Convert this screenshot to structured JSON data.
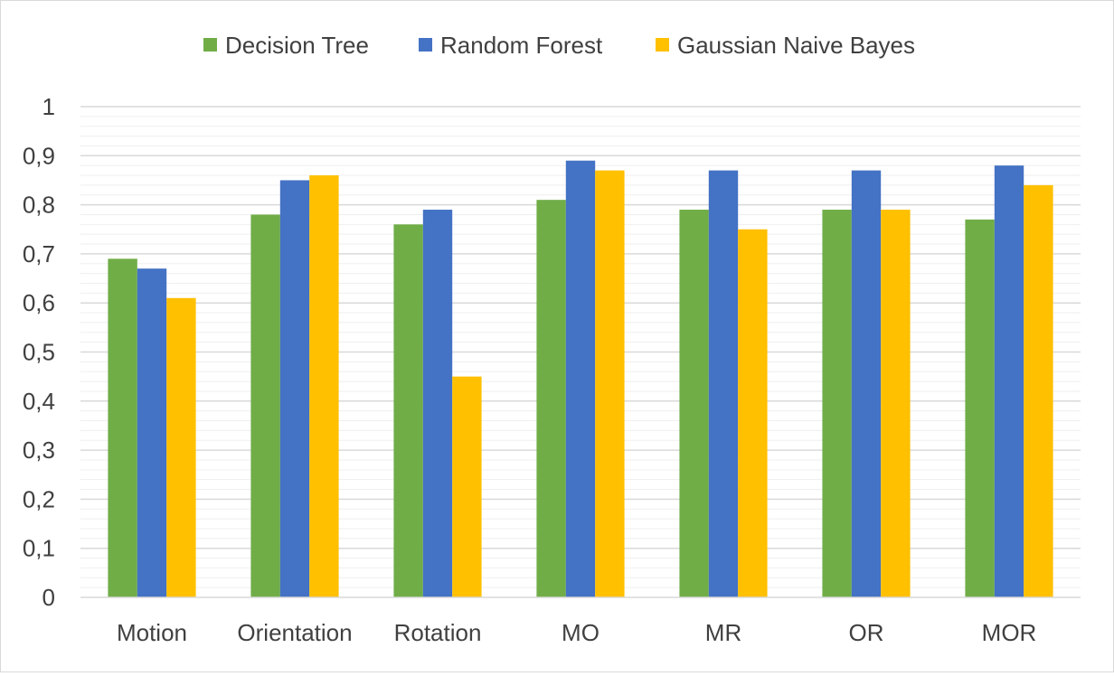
{
  "chart_data": {
    "type": "bar",
    "title": "",
    "xlabel": "",
    "ylabel": "",
    "categories": [
      "Motion",
      "Orientation",
      "Rotation",
      "MO",
      "MR",
      "OR",
      "MOR"
    ],
    "series": [
      {
        "name": "Decision Tree",
        "color": "#70ad47",
        "values": [
          0.69,
          0.78,
          0.76,
          0.81,
          0.79,
          0.79,
          0.77
        ]
      },
      {
        "name": "Random Forest",
        "color": "#4472c4",
        "values": [
          0.67,
          0.85,
          0.79,
          0.89,
          0.87,
          0.87,
          0.88
        ]
      },
      {
        "name": "Gaussian Naive Bayes",
        "color": "#ffc000",
        "values": [
          0.61,
          0.86,
          0.45,
          0.87,
          0.75,
          0.79,
          0.84
        ]
      }
    ],
    "ylim": [
      0,
      1
    ],
    "yticks": [
      "0",
      "0,1",
      "0,2",
      "0,3",
      "0,4",
      "0,5",
      "0,6",
      "0,7",
      "0,8",
      "0,9",
      "1"
    ],
    "grid": true,
    "legend_position": "top-center"
  }
}
